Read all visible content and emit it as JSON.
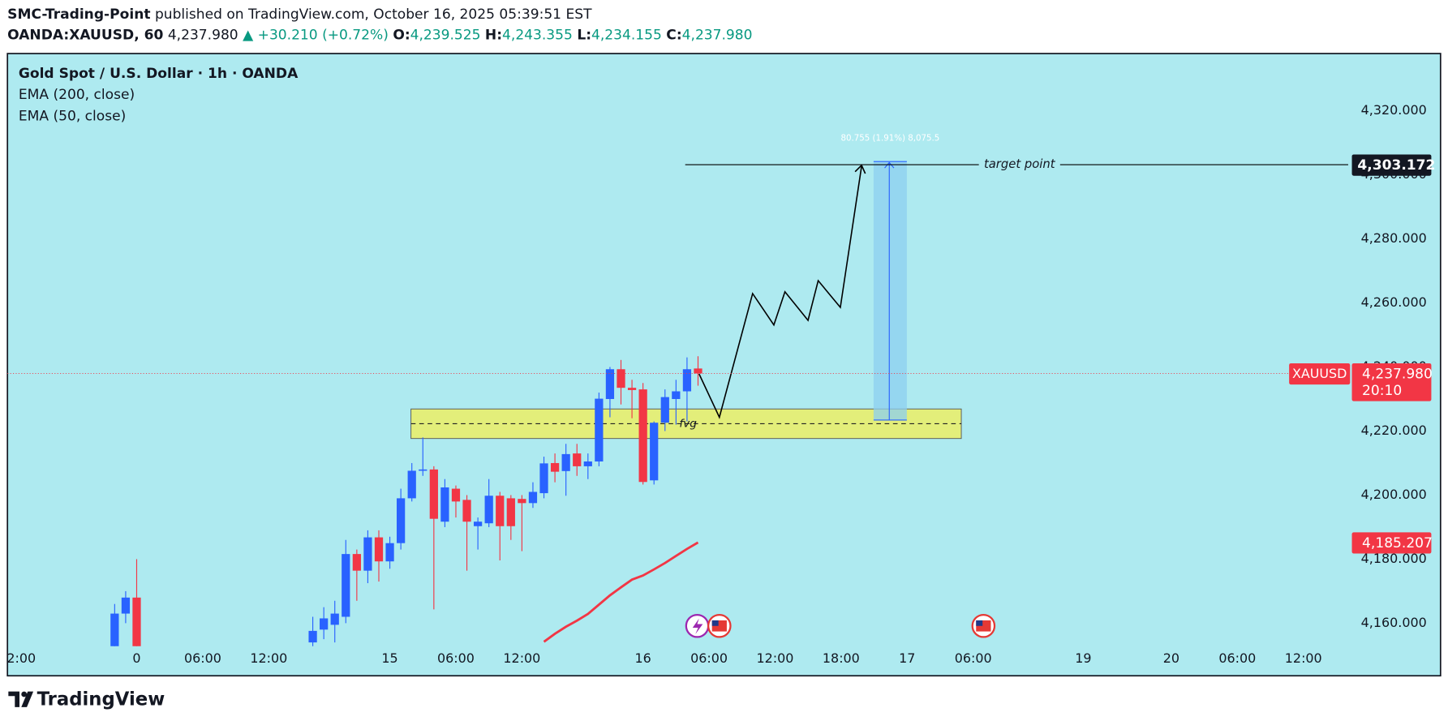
{
  "header": {
    "author": "SMC-Trading-Point",
    "published": "published on TradingView.com, October 16, 2025 05:39:51 EST",
    "symbol": "OANDA:XAUUSD, 60",
    "last": "4,237.980",
    "change": "▲ +30.210 (+0.72%)",
    "ohlc": [
      {
        "key": "O:",
        "value": "4,239.525"
      },
      {
        "key": "H:",
        "value": "4,243.355"
      },
      {
        "key": "L:",
        "value": "4,234.155"
      },
      {
        "key": "C:",
        "value": "4,237.980"
      }
    ]
  },
  "chart_data": {
    "type": "candlestick",
    "title": "Gold Spot / U.S. Dollar · 1h · OANDA",
    "indicators": [
      "EMA (200, close)",
      "EMA (50, close)"
    ],
    "series": [
      {
        "name": "XAUUSD",
        "up_color": "#2962ff",
        "down_color": "#f23645",
        "x": [
          -2,
          -1,
          0,
          16,
          17,
          18,
          19,
          20,
          21,
          22,
          23,
          24,
          25,
          26,
          27,
          28,
          29,
          30,
          31,
          32,
          33,
          34,
          35,
          36,
          37,
          38,
          39,
          40,
          41,
          42,
          43,
          44,
          45,
          46,
          47,
          48,
          49,
          50,
          51
        ],
        "open": [
          4150,
          4163,
          4168,
          4154,
          4158,
          4159.5,
          4162,
          4181.6,
          4176.4,
          4186.8,
          4179.3,
          4185,
          4199,
          4207.6,
          4208,
          4191.7,
          4202,
          4198.5,
          4190.3,
          4191.2,
          4199.8,
          4199,
          4198.8,
          4197.5,
          4200.6,
          4210,
          4207.5,
          4213,
          4209,
          4210.5,
          4230,
          4239.3,
          4233.5,
          4233,
          4204.6,
          4222.6,
          4230,
          4232.4,
          4239.525
        ],
        "high": [
          4166,
          4170,
          4180,
          4162,
          4165,
          4167,
          4186,
          4183,
          4189,
          4189,
          4187,
          4202,
          4210,
          4218,
          4209,
          4205,
          4203,
          4200,
          4193,
          4205,
          4201,
          4200,
          4200,
          4204,
          4212,
          4213,
          4216,
          4216,
          4213,
          4232,
          4240,
          4242.2,
          4236,
          4235,
          4223,
          4233,
          4236,
          4243,
          4243.355
        ],
        "low": [
          4148,
          4160,
          4148,
          4150,
          4155,
          4154,
          4160,
          4167,
          4172.5,
          4173,
          4177,
          4183,
          4198,
          4206,
          4164.3,
          4190,
          4193,
          4176.4,
          4183,
          4190,
          4179.6,
          4186,
          4182.5,
          4196,
          4199,
          4204,
          4199.8,
          4206,
          4205,
          4209,
          4224.3,
          4228.3,
          4224,
          4203.3,
          4203.3,
          4220,
          4222,
          4223,
          4234.155
        ],
        "close": [
          4163,
          4168,
          4150,
          4157.6,
          4161.5,
          4163,
          4181.6,
          4176.4,
          4186.8,
          4179.3,
          4185,
          4199,
          4207.6,
          4208,
          4192.6,
          4202.4,
          4198,
          4191.7,
          4191.7,
          4199.8,
          4190.3,
          4190.3,
          4197.5,
          4201,
          4209.9,
          4207.3,
          4212.8,
          4209,
          4210.5,
          4230.1,
          4239.3,
          4233.5,
          4232.8,
          4204.1,
          4222.6,
          4230.6,
          4232.4,
          4239.3,
          4237.98
        ]
      }
    ],
    "ema": {
      "color": "#f23645",
      "x": [
        37,
        38,
        39,
        40,
        41,
        42,
        43,
        44,
        45,
        46,
        47,
        48,
        49,
        50,
        51
      ],
      "values": [
        4154.2,
        4156.7,
        4158.9,
        4160.8,
        4162.9,
        4165.8,
        4168.7,
        4171.2,
        4173.6,
        4174.9,
        4176.8,
        4178.8,
        4181,
        4183.2,
        4185.207
      ]
    },
    "xlim": [
      -11.74,
      110.07
    ],
    "ylim": [
      4152.81,
      4337.87
    ],
    "xticks": [
      {
        "value": -11,
        "label": "2:00"
      },
      0,
      {
        "value": 6,
        "label": "06:00"
      },
      {
        "value": 12,
        "label": "12:00"
      },
      {
        "value": 23,
        "label": "15"
      },
      {
        "value": 29,
        "label": "06:00"
      },
      {
        "value": 35,
        "label": "12:00"
      },
      {
        "value": 46,
        "label": "16"
      },
      {
        "value": 52,
        "label": "06:00"
      },
      {
        "value": 58,
        "label": "12:00"
      },
      {
        "value": 64,
        "label": "18:00"
      },
      {
        "value": 70,
        "label": "17"
      },
      {
        "value": 76,
        "label": "06:00"
      },
      {
        "value": 86,
        "label": "19"
      },
      {
        "value": 94,
        "label": "20"
      },
      {
        "value": 100,
        "label": "06:00"
      },
      {
        "value": 106,
        "label": "12:00"
      }
    ],
    "yticks": [
      {
        "value": 4160,
        "label": "4,160.000"
      },
      {
        "value": 4180,
        "label": "4,180.000"
      },
      {
        "value": 4200,
        "label": "4,200.000"
      },
      {
        "value": 4220,
        "label": "4,220.000"
      },
      {
        "value": 4240,
        "label": "4,240.000"
      },
      {
        "value": 4260,
        "label": "4,260.000"
      },
      {
        "value": 4280,
        "label": "4,280.000"
      },
      {
        "value": 4300,
        "label": "4,300.000"
      },
      {
        "value": 4320,
        "label": "4,320.000"
      }
    ],
    "badges": [
      {
        "name": "XAUUSD",
        "value": 4237.98,
        "label": "4,237.980",
        "countdown": "20:10",
        "color": "#f23645"
      },
      {
        "value": 4185.207,
        "label": "4,185.207",
        "color": "#f23645"
      },
      {
        "value": 4303.172,
        "label": "4,303.172",
        "color": "#131722"
      }
    ],
    "annotations": {
      "fvg": "fvg",
      "target": "target point",
      "measure": "80.755 (1.91%) 8,075.5"
    }
  },
  "footer": {
    "brand": "TradingView"
  }
}
